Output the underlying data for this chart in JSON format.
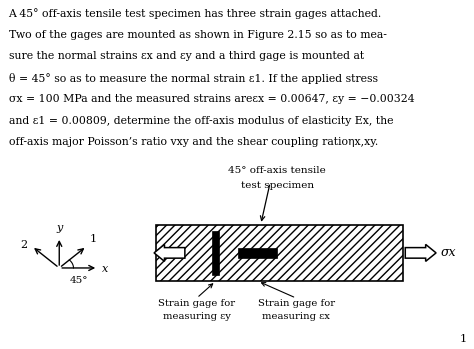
{
  "bg_color": "#ffffff",
  "text_color": "#000000",
  "lines": [
    "A 45° off-axis tensile test specimen has three strain gages attached.",
    "Two of the gages are mounted as shown in Figure 2.15 so as to mea-",
    "sure the normal strains εx and εy and a third gage is mounted at",
    "θ = 45° so as to measure the normal strain ε1. If the applied stress",
    "σx = 100 MPa and the measured strains areεx = 0.00647, εy = −0.00324",
    "and ε1 = 0.00809, determine the off-axis modulus of elasticity Ex, the",
    "off-axis major Poisson’s ratio vxy and the shear coupling ratioηx,xy."
  ],
  "specimen_title_1": "45° off-axis tensile",
  "specimen_title_2": "test specimen",
  "sigma_x_label": "σx",
  "strain_y_line1": "Strain gage for",
  "strain_y_line2": "measuring εy",
  "strain_x_line1": "Strain gage for",
  "strain_x_line2": "measuring εx",
  "page_num": "1",
  "coord_x_label": "x",
  "coord_y_label": "y",
  "coord_1_label": "1",
  "coord_2_label": "2",
  "coord_45_label": "45°"
}
